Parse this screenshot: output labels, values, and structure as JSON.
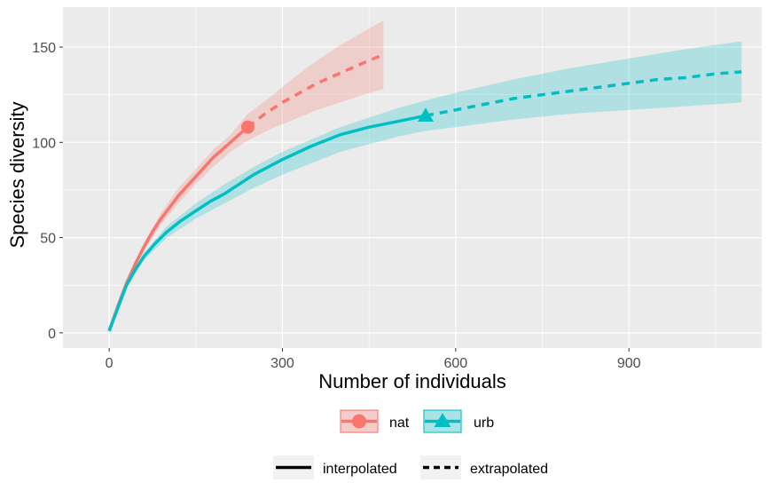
{
  "chart_data": {
    "type": "line",
    "title": "",
    "xlabel": "Number of individuals",
    "ylabel": "Species diversity",
    "xlim": [
      -80,
      1130
    ],
    "ylim": [
      -8,
      171
    ],
    "xticks": [
      0,
      300,
      600,
      900
    ],
    "xtick_labels": [
      "0",
      "300",
      "600",
      "900"
    ],
    "yticks": [
      0,
      50,
      100,
      150
    ],
    "ytick_labels": [
      "0",
      "50",
      "100",
      "150"
    ],
    "grid": true,
    "legend_position": "bottom",
    "series": [
      {
        "name": "nat",
        "color": "#f8766d",
        "marker": "circle",
        "observed": {
          "x": 240,
          "y": 108
        },
        "interpolated": {
          "x": [
            0,
            15,
            30,
            45,
            60,
            75,
            90,
            105,
            120,
            135,
            150,
            165,
            180,
            195,
            210,
            225,
            240
          ],
          "y": [
            1,
            14,
            26,
            36,
            45,
            53,
            60,
            66,
            72,
            77,
            82,
            87,
            92,
            96,
            100,
            104,
            108
          ]
        },
        "extrapolated": {
          "x": [
            240,
            270,
            300,
            330,
            360,
            390,
            420,
            450,
            475
          ],
          "y": [
            108,
            115,
            121,
            126,
            131,
            135,
            139,
            143,
            146
          ]
        },
        "ci_lower": {
          "x": [
            0,
            30,
            60,
            90,
            120,
            150,
            180,
            210,
            240,
            280,
            320,
            360,
            400,
            440,
            475
          ],
          "y": [
            1,
            25,
            43,
            57,
            68,
            78,
            87,
            95,
            101,
            107,
            112,
            117,
            121,
            125,
            128
          ]
        },
        "ci_upper": {
          "x": [
            0,
            30,
            60,
            90,
            120,
            150,
            180,
            210,
            240,
            280,
            320,
            360,
            400,
            440,
            475
          ],
          "y": [
            1,
            27,
            47,
            63,
            76,
            86,
            96,
            104,
            115,
            124,
            134,
            143,
            151,
            158,
            164
          ]
        }
      },
      {
        "name": "urb",
        "color": "#00bfc4",
        "marker": "triangle",
        "observed": {
          "x": 548,
          "y": 114
        },
        "interpolated": {
          "x": [
            0,
            15,
            30,
            45,
            60,
            80,
            100,
            125,
            150,
            175,
            200,
            250,
            300,
            350,
            400,
            450,
            500,
            548
          ],
          "y": [
            1,
            13,
            25,
            33,
            40,
            47,
            53,
            59,
            64,
            69,
            73,
            83,
            91,
            98,
            104,
            108,
            111,
            114
          ]
        },
        "extrapolated": {
          "x": [
            548,
            600,
            650,
            700,
            750,
            800,
            850,
            900,
            950,
            1000,
            1050,
            1095
          ],
          "y": [
            114,
            117,
            120,
            123,
            125,
            127,
            129,
            131,
            133,
            134,
            136,
            137
          ]
        },
        "ci_lower": {
          "x": [
            0,
            30,
            60,
            100,
            150,
            200,
            250,
            300,
            400,
            500,
            548,
            600,
            700,
            800,
            900,
            1000,
            1095
          ],
          "y": [
            1,
            24,
            38,
            50,
            60,
            68,
            76,
            83,
            95,
            103,
            106,
            108,
            112,
            115,
            117,
            119,
            121
          ]
        },
        "ci_upper": {
          "x": [
            0,
            30,
            60,
            100,
            150,
            200,
            250,
            300,
            400,
            500,
            548,
            600,
            700,
            800,
            900,
            1000,
            1095
          ],
          "y": [
            1,
            26,
            42,
            56,
            68,
            78,
            87,
            95,
            108,
            118,
            122,
            126,
            133,
            139,
            144,
            149,
            153
          ]
        }
      }
    ],
    "legend_series_labels": [
      "nat",
      "urb"
    ],
    "legend_linetype_labels": [
      "interpolated",
      "extrapolated"
    ]
  }
}
